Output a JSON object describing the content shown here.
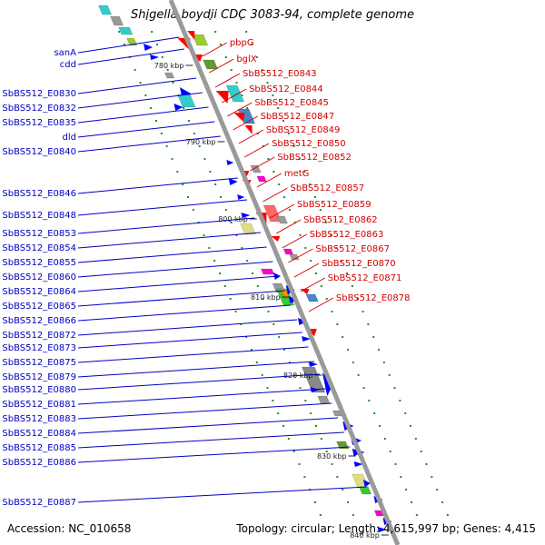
{
  "title": "Shigella boydii CDC 3083-94, complete genome",
  "footer": {
    "accession": "Accession: NC_010658",
    "stats": "Topology: circular; Length: 4,615,997 bp; Genes: 4,415"
  },
  "colors": {
    "forward_label": "#d00000",
    "reverse_label": "#0000c0",
    "backbone": "#9a9a9a",
    "dots": "#2a8a2a"
  },
  "kbp_ticks": [
    "780 kbp",
    "790 kbp",
    "800 kbp",
    "810 kbp",
    "820 kbp",
    "830 kbp",
    "840 kbp"
  ],
  "left_labels": [
    "sanA",
    "cdd",
    "SbBS512_E0830",
    "SbBS512_E0832",
    "SbBS512_E0835",
    "dld",
    "SbBS512_E0840",
    "SbBS512_E0846",
    "SbBS512_E0848",
    "SbBS512_E0853",
    "SbBS512_E0854",
    "SbBS512_E0855",
    "SbBS512_E0860",
    "SbBS512_E0864",
    "SbBS512_E0865",
    "SbBS512_E0866",
    "SbBS512_E0872",
    "SbBS512_E0873",
    "SbBS512_E0875",
    "SbBS512_E0879",
    "SbBS512_E0880",
    "SbBS512_E0881",
    "SbBS512_E0883",
    "SbBS512_E0884",
    "SbBS512_E0885",
    "SbBS512_E0886",
    "SbBS512_E0887"
  ],
  "right_labels": [
    "pbpG",
    "bglX",
    "SbBS512_E0843",
    "SbBS512_E0844",
    "SbBS512_E0845",
    "SbBS512_E0847",
    "SbBS512_E0849",
    "SbBS512_E0850",
    "SbBS512_E0852",
    "metG",
    "SbBS512_E0857",
    "SbBS512_E0859",
    "SbBS512_E0862",
    "SbBS512_E0863",
    "SbBS512_E0867",
    "SbBS512_E0870",
    "SbBS512_E0871",
    "SbBS512_E0878"
  ]
}
